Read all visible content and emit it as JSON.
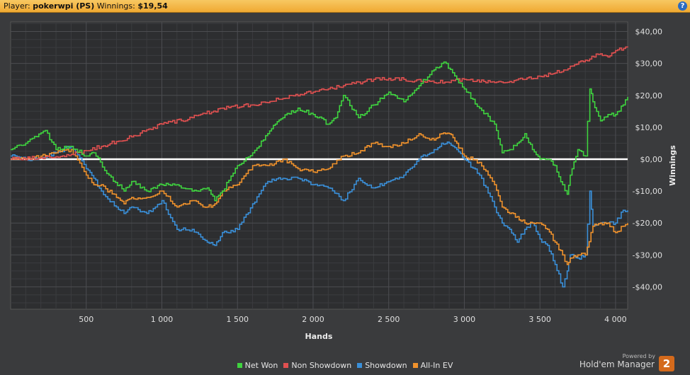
{
  "header": {
    "player_label": "Player:",
    "player_name": "pokerwpi (PS)",
    "winnings_label": "Winnings:",
    "winnings_value": "$19,54",
    "help_label": "?"
  },
  "legend": [
    {
      "label": "Net Won",
      "color": "#3fd33f"
    },
    {
      "label": "Non Showdown",
      "color": "#e05050"
    },
    {
      "label": "Showdown",
      "color": "#3a8fd8"
    },
    {
      "label": "All-In EV",
      "color": "#f0922c"
    }
  ],
  "branding": {
    "powered_by": "Powered by",
    "product": "Hold'em Manager",
    "badge": "2"
  },
  "chart_data": {
    "type": "line",
    "xlabel": "Hands",
    "ylabel": "Winnings",
    "xlim": [
      0,
      4080
    ],
    "ylim": [
      -47,
      43
    ],
    "x_ticks": [
      500,
      1000,
      1500,
      2000,
      2500,
      3000,
      3500,
      4000
    ],
    "x_tick_labels": [
      "500",
      "1 000",
      "1 500",
      "2 000",
      "2 500",
      "3 000",
      "3 500",
      "4 000"
    ],
    "y_ticks": [
      40,
      30,
      20,
      10,
      0,
      -10,
      -20,
      -30,
      -40
    ],
    "y_tick_labels": [
      "$40,00",
      "$30,00",
      "$20,00",
      "$10,00",
      "$0,00",
      "-$10,00",
      "-$20,00",
      "-$30,00",
      "-$40,00"
    ],
    "grid": true,
    "legend_position": "bottom",
    "series": [
      {
        "name": "Net Won",
        "color": "#3fd33f",
        "x": [
          0,
          100,
          230,
          300,
          400,
          500,
          550,
          650,
          750,
          800,
          900,
          1000,
          1100,
          1200,
          1300,
          1350,
          1400,
          1500,
          1600,
          1700,
          1750,
          1800,
          1900,
          2000,
          2100,
          2150,
          2200,
          2300,
          2400,
          2500,
          2600,
          2700,
          2800,
          2850,
          2880,
          2950,
          3000,
          3100,
          3200,
          3250,
          3300,
          3350,
          3400,
          3450,
          3500,
          3550,
          3600,
          3650,
          3680,
          3700,
          3750,
          3800,
          3830,
          3850,
          3900,
          3950,
          4000,
          4050,
          4080
        ],
        "y": [
          3,
          5,
          9,
          3,
          4,
          1,
          2,
          -5,
          -10,
          -7,
          -10,
          -8,
          -8,
          -10,
          -9,
          -13,
          -10,
          -2,
          2,
          8,
          11,
          13,
          16,
          14,
          11,
          13,
          20,
          13,
          17,
          21,
          18,
          23,
          28,
          30,
          30,
          25,
          22,
          16,
          11,
          2,
          3,
          5,
          8,
          3,
          0,
          0,
          -2,
          -8,
          -11,
          -5,
          3,
          1,
          22,
          18,
          12,
          14,
          14,
          17,
          19.5
        ]
      },
      {
        "name": "Non Showdown",
        "color": "#e05050",
        "x": [
          0,
          200,
          400,
          600,
          800,
          1000,
          1200,
          1400,
          1600,
          1800,
          2000,
          2200,
          2400,
          2600,
          2800,
          3000,
          3200,
          3400,
          3600,
          3800,
          3900,
          3950,
          4000,
          4080
        ],
        "y": [
          0,
          0.5,
          1.5,
          4,
          7,
          11,
          13,
          16,
          17,
          19,
          21,
          23,
          25,
          25,
          24,
          25,
          24,
          25,
          27,
          31,
          33,
          32,
          34,
          35
        ]
      },
      {
        "name": "Showdown",
        "color": "#3a8fd8",
        "x": [
          0,
          100,
          200,
          300,
          400,
          500,
          550,
          600,
          700,
          750,
          800,
          900,
          1000,
          1100,
          1200,
          1300,
          1350,
          1400,
          1500,
          1600,
          1700,
          1800,
          1900,
          2000,
          2100,
          2200,
          2300,
          2400,
          2500,
          2600,
          2700,
          2800,
          2850,
          2900,
          2950,
          3000,
          3100,
          3200,
          3250,
          3300,
          3350,
          3400,
          3450,
          3500,
          3550,
          3600,
          3650,
          3680,
          3700,
          3750,
          3800,
          3830,
          3850,
          3900,
          3950,
          4000,
          4050,
          4080
        ],
        "y": [
          1,
          0,
          0.5,
          2,
          4,
          -3,
          -6,
          -10,
          -15,
          -17,
          -15,
          -17,
          -13,
          -22,
          -22,
          -26,
          -27,
          -23,
          -22,
          -14,
          -7,
          -6,
          -6,
          -8,
          -9,
          -13,
          -6,
          -9,
          -7,
          -5,
          0,
          3,
          5,
          5,
          3,
          0,
          -5,
          -15,
          -20,
          -22,
          -26,
          -22,
          -20,
          -25,
          -27,
          -33,
          -40,
          -35,
          -30,
          -31,
          -30,
          -10,
          -21,
          -20,
          -20,
          -20,
          -16,
          -16
        ]
      },
      {
        "name": "All-In EV",
        "color": "#f0922c",
        "x": [
          0,
          100,
          200,
          300,
          400,
          500,
          550,
          600,
          700,
          750,
          800,
          900,
          1000,
          1100,
          1200,
          1300,
          1350,
          1400,
          1500,
          1600,
          1700,
          1800,
          1900,
          2000,
          2100,
          2200,
          2300,
          2400,
          2500,
          2600,
          2700,
          2800,
          2850,
          2900,
          2950,
          3000,
          3100,
          3200,
          3250,
          3300,
          3350,
          3400,
          3450,
          3500,
          3550,
          3600,
          3650,
          3680,
          3700,
          3750,
          3800,
          3850,
          3900,
          3950,
          4000,
          4050,
          4080
        ],
        "y": [
          0,
          0,
          1,
          2,
          3,
          -5,
          -8,
          -8,
          -12,
          -14,
          -12,
          -12,
          -10,
          -15,
          -13,
          -15,
          -14,
          -10,
          -8,
          -2,
          -2,
          0,
          -3,
          -4,
          -3,
          1,
          2,
          5,
          4,
          5,
          8,
          6,
          8,
          8,
          5,
          1,
          -1,
          -8,
          -15,
          -17,
          -18,
          -20,
          -20,
          -20,
          -22,
          -26,
          -30,
          -33,
          -31,
          -30,
          -30,
          -21,
          -20,
          -20,
          -23,
          -21,
          -20
        ]
      }
    ]
  }
}
